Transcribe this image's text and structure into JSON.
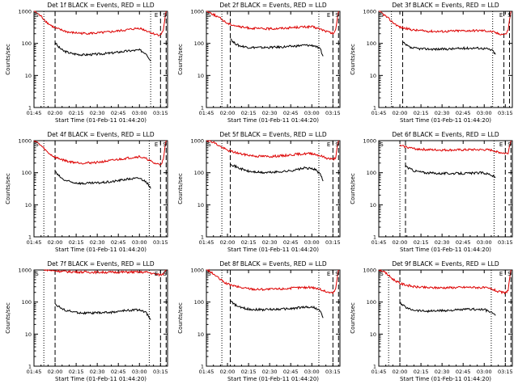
{
  "figure": {
    "colors": {
      "events": "#000000",
      "lld": "#dd0000",
      "axes": "#000000",
      "background": "#ffffff"
    },
    "markers": {
      "s_label": "S",
      "e_label": "E"
    }
  },
  "chart_data": [
    {
      "type": "line",
      "title": "Det 1f BLACK = Events, RED = LLD",
      "xlabel": "Start Time (01-Feb-11 01:44:20)",
      "ylabel": "Counts/sec",
      "yscale": "log",
      "ylim": [
        1,
        1000
      ],
      "xlim_min": [
        105,
        200
      ],
      "xticks": [
        "01:45",
        "02:00",
        "02:15",
        "02:30",
        "02:45",
        "03:00",
        "03:15"
      ],
      "yticks": [
        "1",
        "10",
        "100",
        "1000"
      ],
      "dotted_lines_min": [
        112,
        188
      ],
      "dashed_lines_min": [
        120,
        195,
        199
      ],
      "s_marker_min": 107,
      "e_marker_min": 192,
      "s2_marker_min": 198,
      "series": [
        {
          "name": "Events",
          "color": "#000000",
          "x": [
            120,
            122,
            126,
            132,
            140,
            150,
            160,
            170,
            180,
            185,
            188
          ],
          "y": [
            110,
            80,
            58,
            48,
            44,
            46,
            50,
            57,
            62,
            48,
            28
          ]
        },
        {
          "name": "LLD",
          "color": "#dd0000",
          "x": [
            105,
            110,
            115,
            120,
            130,
            140,
            150,
            160,
            170,
            180,
            186,
            190,
            195,
            197,
            199
          ],
          "y": [
            1050,
            700,
            420,
            300,
            220,
            205,
            210,
            230,
            260,
            300,
            240,
            200,
            180,
            260,
            1100
          ]
        }
      ]
    },
    {
      "type": "line",
      "title": "Det 2f BLACK = Events, RED = LLD",
      "xlabel": "Start Time (01-Feb-11 01:44:20)",
      "ylabel": "Counts/sec",
      "yscale": "log",
      "ylim": [
        1,
        1000
      ],
      "xlim_min": [
        105,
        200
      ],
      "xticks": [
        "01:45",
        "02:00",
        "02:15",
        "02:30",
        "02:45",
        "03:00",
        "03:15"
      ],
      "yticks": [
        "1",
        "10",
        "100",
        "1000"
      ],
      "dotted_lines_min": [
        116,
        185
      ],
      "dashed_lines_min": [
        122,
        195,
        199
      ],
      "s_marker_min": 107,
      "e_marker_min": 192,
      "s2_marker_min": 198,
      "series": [
        {
          "name": "Events",
          "color": "#000000",
          "x": [
            122,
            124,
            128,
            135,
            145,
            155,
            165,
            175,
            182,
            186,
            188
          ],
          "y": [
            150,
            110,
            85,
            75,
            74,
            76,
            80,
            88,
            85,
            65,
            40
          ]
        },
        {
          "name": "LLD",
          "color": "#dd0000",
          "x": [
            105,
            110,
            115,
            120,
            130,
            140,
            150,
            160,
            170,
            180,
            186,
            190,
            195,
            197,
            199
          ],
          "y": [
            1050,
            800,
            600,
            420,
            320,
            290,
            285,
            300,
            320,
            330,
            280,
            240,
            200,
            260,
            1100
          ]
        }
      ]
    },
    {
      "type": "line",
      "title": "Det 3f BLACK = Events, RED = LLD",
      "xlabel": "Start Time (01-Feb-11 01:44:20)",
      "ylabel": "Counts/sec",
      "yscale": "log",
      "ylim": [
        1,
        1000
      ],
      "xlim_min": [
        105,
        200
      ],
      "xticks": [
        "01:45",
        "02:00",
        "02:15",
        "02:30",
        "02:45",
        "03:00",
        "03:15"
      ],
      "yticks": [
        "1",
        "10",
        "100",
        "1000"
      ],
      "dotted_lines_min": [
        114,
        186
      ],
      "dashed_lines_min": [
        122,
        194,
        198
      ],
      "s_marker_min": 107,
      "e_marker_min": 192,
      "s2_marker_min": 198,
      "series": [
        {
          "name": "Events",
          "color": "#000000",
          "x": [
            122,
            124,
            128,
            135,
            145,
            155,
            165,
            175,
            182,
            186,
            188
          ],
          "y": [
            110,
            90,
            72,
            68,
            66,
            67,
            70,
            72,
            68,
            60,
            45
          ]
        },
        {
          "name": "LLD",
          "color": "#dd0000",
          "x": [
            105,
            110,
            115,
            120,
            130,
            140,
            150,
            160,
            170,
            180,
            186,
            190,
            195,
            197,
            199
          ],
          "y": [
            1050,
            700,
            450,
            320,
            260,
            240,
            235,
            245,
            250,
            250,
            230,
            200,
            190,
            260,
            1100
          ]
        }
      ]
    },
    {
      "type": "line",
      "title": "Det 4f BLACK = Events, RED = LLD",
      "xlabel": "Start Time (01-Feb-11 01:44:20)",
      "ylabel": "Counts/sec",
      "yscale": "log",
      "ylim": [
        1,
        1000
      ],
      "xlim_min": [
        105,
        200
      ],
      "xticks": [
        "01:45",
        "02:00",
        "02:15",
        "02:30",
        "02:45",
        "03:00",
        "03:15"
      ],
      "yticks": [
        "1",
        "10",
        "100",
        "1000"
      ],
      "dotted_lines_min": [
        112,
        187
      ],
      "dashed_lines_min": [
        120,
        195,
        199
      ],
      "s_marker_min": 107,
      "e_marker_min": 192,
      "s2_marker_min": 198,
      "series": [
        {
          "name": "Events",
          "color": "#000000",
          "x": [
            120,
            122,
            126,
            132,
            140,
            150,
            160,
            170,
            180,
            185,
            188
          ],
          "y": [
            110,
            85,
            60,
            50,
            46,
            48,
            52,
            62,
            68,
            52,
            32
          ]
        },
        {
          "name": "LLD",
          "color": "#dd0000",
          "x": [
            105,
            110,
            115,
            120,
            130,
            140,
            150,
            160,
            170,
            180,
            186,
            190,
            195,
            197,
            199
          ],
          "y": [
            1050,
            700,
            420,
            300,
            220,
            200,
            210,
            240,
            280,
            320,
            260,
            200,
            180,
            250,
            1100
          ]
        }
      ]
    },
    {
      "type": "line",
      "title": "Det 5f BLACK = Events, RED = LLD",
      "xlabel": "Start Time (01-Feb-11 01:44:20)",
      "ylabel": "Counts/sec",
      "yscale": "log",
      "ylim": [
        1,
        1000
      ],
      "xlim_min": [
        105,
        200
      ],
      "xticks": [
        "01:45",
        "02:00",
        "02:15",
        "02:30",
        "02:45",
        "03:00",
        "03:15"
      ],
      "yticks": [
        "1",
        "10",
        "100",
        "1000"
      ],
      "dotted_lines_min": [
        116,
        185
      ],
      "dashed_lines_min": [
        122,
        195,
        199
      ],
      "s_marker_min": 107,
      "e_marker_min": 192,
      "s2_marker_min": 198,
      "series": [
        {
          "name": "Events",
          "color": "#000000",
          "x": [
            122,
            124,
            128,
            135,
            145,
            155,
            165,
            175,
            182,
            186,
            188
          ],
          "y": [
            200,
            170,
            140,
            110,
            100,
            105,
            115,
            140,
            130,
            90,
            55
          ]
        },
        {
          "name": "LLD",
          "color": "#dd0000",
          "x": [
            105,
            110,
            115,
            120,
            130,
            140,
            150,
            160,
            170,
            180,
            186,
            190,
            195,
            197,
            199
          ],
          "y": [
            1050,
            900,
            650,
            500,
            380,
            330,
            320,
            340,
            380,
            400,
            340,
            290,
            260,
            300,
            1100
          ]
        }
      ]
    },
    {
      "type": "line",
      "title": "Det 6f BLACK = Events, RED = LLD",
      "xlabel": "Start Time (01-Feb-11 01:44:20)",
      "ylabel": "Counts/sec",
      "yscale": "log",
      "ylim": [
        1,
        1000
      ],
      "xlim_min": [
        105,
        200
      ],
      "xticks": [
        "01:45",
        "02:00",
        "02:15",
        "02:30",
        "02:45",
        "03:00",
        "03:15"
      ],
      "yticks": [
        "1",
        "10",
        "100",
        "1000"
      ],
      "dotted_lines_min": [
        120,
        187
      ],
      "dashed_lines_min": [
        124,
        195,
        199
      ],
      "s_marker_min": 107,
      "e_marker_min": 192,
      "s2_marker_min": 198,
      "series": [
        {
          "name": "Events",
          "color": "#000000",
          "x": [
            124,
            126,
            130,
            138,
            148,
            158,
            168,
            178,
            184,
            188
          ],
          "y": [
            170,
            140,
            115,
            100,
            95,
            95,
            95,
            100,
            90,
            70
          ]
        },
        {
          "name": "LLD",
          "color": "#dd0000",
          "x": [
            120,
            126,
            130,
            140,
            150,
            160,
            170,
            180,
            186,
            190,
            195,
            197,
            199
          ],
          "y": [
            700,
            620,
            560,
            520,
            510,
            510,
            520,
            520,
            500,
            440,
            400,
            420,
            1100
          ]
        }
      ]
    },
    {
      "type": "line",
      "title": "Det 7f BLACK = Events, RED = LLD",
      "xlabel": "Start Time (01-Feb-11 01:44:20)",
      "ylabel": "Counts/sec",
      "yscale": "log",
      "ylim": [
        1,
        1000
      ],
      "xlim_min": [
        105,
        200
      ],
      "xticks": [
        "01:45",
        "02:00",
        "02:15",
        "02:30",
        "02:45",
        "03:00",
        "03:15"
      ],
      "yticks": [
        "1",
        "10",
        "100",
        "1000"
      ],
      "dotted_lines_min": [
        112,
        187
      ],
      "dashed_lines_min": [
        120,
        195,
        199
      ],
      "s_marker_min": 107,
      "e_marker_min": 192,
      "s2_marker_min": 198,
      "series": [
        {
          "name": "Events",
          "color": "#000000",
          "x": [
            120,
            122,
            126,
            132,
            140,
            150,
            160,
            170,
            180,
            185,
            188
          ],
          "y": [
            90,
            75,
            58,
            50,
            45,
            46,
            48,
            54,
            58,
            45,
            28
          ]
        },
        {
          "name": "LLD",
          "color": "#dd0000",
          "x": [
            112,
            118,
            130,
            140,
            150,
            160,
            170,
            180,
            186,
            190,
            195,
            197,
            199
          ],
          "y": [
            1050,
            950,
            880,
            860,
            850,
            850,
            860,
            860,
            850,
            760,
            700,
            760,
            1100
          ]
        }
      ]
    },
    {
      "type": "line",
      "title": "Det 8f BLACK = Events, RED = LLD",
      "xlabel": "Start Time (01-Feb-11 01:44:20)",
      "ylabel": "Counts/sec",
      "yscale": "log",
      "ylim": [
        1,
        1000
      ],
      "xlim_min": [
        105,
        200
      ],
      "xticks": [
        "01:45",
        "02:00",
        "02:15",
        "02:30",
        "02:45",
        "03:00",
        "03:15"
      ],
      "yticks": [
        "1",
        "10",
        "100",
        "1000"
      ],
      "dotted_lines_min": [
        116,
        185
      ],
      "dashed_lines_min": [
        122,
        195,
        199
      ],
      "s_marker_min": 107,
      "e_marker_min": 192,
      "s2_marker_min": 198,
      "series": [
        {
          "name": "Events",
          "color": "#000000",
          "x": [
            122,
            124,
            128,
            135,
            145,
            155,
            165,
            175,
            182,
            186,
            188
          ],
          "y": [
            110,
            90,
            70,
            60,
            58,
            60,
            62,
            70,
            68,
            52,
            32
          ]
        },
        {
          "name": "LLD",
          "color": "#dd0000",
          "x": [
            105,
            110,
            115,
            120,
            130,
            140,
            150,
            160,
            170,
            180,
            186,
            190,
            195,
            197,
            199
          ],
          "y": [
            1050,
            750,
            500,
            360,
            280,
            250,
            250,
            260,
            280,
            290,
            250,
            210,
            190,
            260,
            1100
          ]
        }
      ]
    },
    {
      "type": "line",
      "title": "Det 9f BLACK = Events, RED = LLD",
      "xlabel": "Start Time (01-Feb-11 01:44:20)",
      "ylabel": "Counts/sec",
      "yscale": "log",
      "ylim": [
        1,
        1000
      ],
      "xlim_min": [
        105,
        200
      ],
      "xticks": [
        "01:45",
        "02:00",
        "02:15",
        "02:30",
        "02:45",
        "03:00",
        "03:15"
      ],
      "yticks": [
        "1",
        "10",
        "100",
        "1000"
      ],
      "dotted_lines_min": [
        112,
        185
      ],
      "dashed_lines_min": [
        120,
        195,
        199
      ],
      "s_marker_min": 107,
      "e_marker_min": 192,
      "s2_marker_min": 198,
      "series": [
        {
          "name": "Events",
          "color": "#000000",
          "x": [
            120,
            122,
            126,
            132,
            140,
            150,
            160,
            170,
            180,
            185,
            188
          ],
          "y": [
            95,
            80,
            62,
            55,
            52,
            54,
            56,
            60,
            58,
            48,
            38
          ]
        },
        {
          "name": "LLD",
          "color": "#dd0000",
          "x": [
            105,
            110,
            115,
            120,
            130,
            140,
            150,
            160,
            170,
            180,
            186,
            190,
            195,
            197,
            199
          ],
          "y": [
            1050,
            800,
            520,
            380,
            300,
            280,
            280,
            285,
            290,
            280,
            250,
            210,
            190,
            240,
            1100
          ]
        }
      ]
    }
  ]
}
